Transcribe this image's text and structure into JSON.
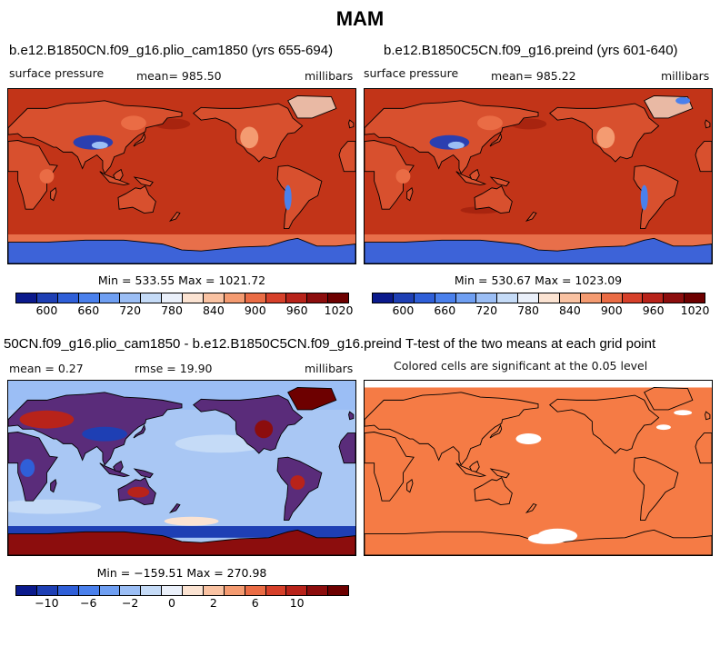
{
  "title": "MAM",
  "panels": [
    {
      "title": "b.e12.B1850CN.f09_g16.plio_cam1850 (yrs 655-694)",
      "left_label": "surface pressure",
      "center_label": "mean=  985.50",
      "right_label": "millibars",
      "minmax": "Min = 533.55 Max = 1021.72"
    },
    {
      "title": "b.e12.B1850C5CN.f09_g16.preind (yrs 601-640)",
      "left_label": "surface pressure",
      "center_label": "mean=  985.22",
      "right_label": "millibars",
      "minmax": "Min = 530.67 Max = 1023.09"
    },
    {
      "title": "50CN.f09_g16.plio_cam1850 - b.e12.B1850C5CN.f09_g16.preind",
      "left_label": "mean =    0.27",
      "center_label": "rmse =   19.90",
      "right_label": "millibars",
      "minmax": "Min = −159.51 Max = 270.98"
    },
    {
      "title": "T-test of the two means at each grid point",
      "subtitle": "Colored cells are significant at the 0.05 level"
    }
  ],
  "colorbars": {
    "pressure": {
      "colors": [
        "#0b1a8c",
        "#1e3fb4",
        "#2f5fd8",
        "#4a80ec",
        "#6f9ff2",
        "#9bbef5",
        "#c5dbf7",
        "#eaf0fa",
        "#fbe3d2",
        "#f9c2a2",
        "#f49b71",
        "#ea6c45",
        "#d6402a",
        "#b8231a",
        "#8c0d0d",
        "#6d0000"
      ],
      "tick_labels": [
        "600",
        "660",
        "720",
        "780",
        "840",
        "900",
        "960",
        "1020"
      ]
    },
    "difference": {
      "colors": [
        "#0b1a8c",
        "#1e3fb4",
        "#2f5fd8",
        "#4a80ec",
        "#6f9ff2",
        "#9bbef5",
        "#c5dbf7",
        "#eaf0fa",
        "#fbe3d2",
        "#f9c2a2",
        "#f49b71",
        "#ea6c45",
        "#d6402a",
        "#b8231a",
        "#8c0d0d",
        "#6d0000"
      ],
      "tick_labels": [
        "−10",
        "−6",
        "−2",
        "0",
        "2",
        "6",
        "10"
      ]
    }
  },
  "chart_data": [
    {
      "type": "heatmap",
      "title": "b.e12.B1850CN.f09_g16.plio_cam1850 (yrs 655-694)",
      "variable": "surface pressure",
      "units": "millibars",
      "mean": 985.5,
      "min": 533.55,
      "max": 1021.72,
      "colorbar_ticks": [
        600,
        660,
        720,
        780,
        840,
        900,
        960,
        1020
      ]
    },
    {
      "type": "heatmap",
      "title": "b.e12.B1850C5CN.f09_g16.preind (yrs 601-640)",
      "variable": "surface pressure",
      "units": "millibars",
      "mean": 985.22,
      "min": 530.67,
      "max": 1023.09,
      "colorbar_ticks": [
        600,
        660,
        720,
        780,
        840,
        900,
        960,
        1020
      ]
    },
    {
      "type": "heatmap",
      "title": "50CN.f09_g16.plio_cam1850 - b.e12.B1850C5CN.f09_g16.preind",
      "units": "millibars",
      "mean": 0.27,
      "rmse": 19.9,
      "min": -159.51,
      "max": 270.98,
      "colorbar_ticks": [
        -10,
        -6,
        -2,
        0,
        2,
        6,
        10
      ]
    },
    {
      "type": "heatmap",
      "title": "T-test of the two means at each grid point",
      "subtitle": "Colored cells are significant at the 0.05 level",
      "significance_level": 0.05
    }
  ]
}
